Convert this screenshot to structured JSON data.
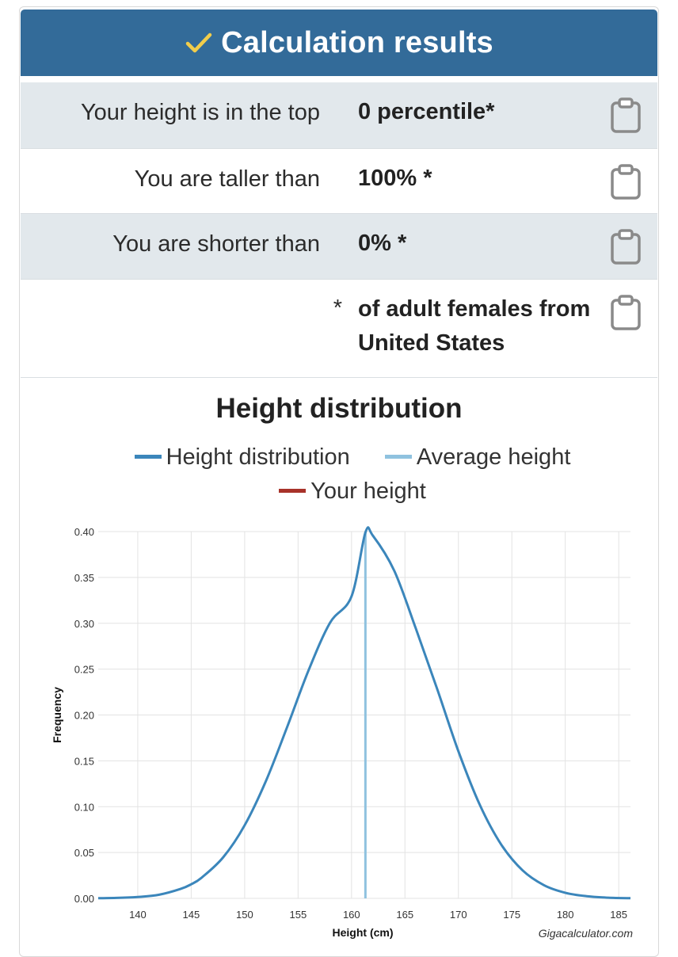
{
  "header": {
    "icon": "check-icon",
    "icon_color": "#f2cd4b",
    "title": "Calculation results",
    "background": "#336b99"
  },
  "results": [
    {
      "label": "Your height is in the top",
      "value": "0 percentile*",
      "shaded": true
    },
    {
      "label": "You are taller than",
      "value": "100% *",
      "shaded": false
    },
    {
      "label": "You are shorter than",
      "value": "0% *",
      "shaded": true
    },
    {
      "label": "*",
      "value": "of adult females from United States",
      "shaded": false
    }
  ],
  "copy_icon": "clipboard-icon",
  "chart_heading": "Height distribution",
  "legend": [
    {
      "name": "Height distribution",
      "color": "#3b86bb"
    },
    {
      "name": "Average height",
      "color": "#8fc2df"
    },
    {
      "name": "Your height",
      "color": "#a8322a"
    }
  ],
  "credit": "Gigacalculator.com",
  "chart_data": {
    "type": "line",
    "xlabel": "Height (cm)",
    "ylabel": "Frequency",
    "xlim": [
      136.3,
      186.1
    ],
    "ylim": [
      0,
      0.4
    ],
    "x_ticks": [
      140,
      145,
      150,
      155,
      160,
      165,
      170,
      175,
      180,
      185
    ],
    "y_ticks": [
      "0.00",
      "0.05",
      "0.10",
      "0.15",
      "0.20",
      "0.25",
      "0.30",
      "0.35",
      "0.40"
    ],
    "grid": true,
    "series": [
      {
        "name": "Height distribution",
        "x": [
          136.3,
          138,
          140,
          142,
          144,
          145,
          146,
          148,
          150,
          152,
          154,
          156,
          158,
          160,
          161.3,
          162,
          164,
          166,
          168,
          170,
          172,
          174,
          176,
          178,
          180,
          182,
          184,
          186.1
        ],
        "y": [
          0.0002,
          0.0005,
          0.0015,
          0.004,
          0.0103,
          0.0154,
          0.0228,
          0.0449,
          0.0797,
          0.1283,
          0.1875,
          0.2492,
          0.3007,
          0.3293,
          0.399,
          0.3955,
          0.3572,
          0.2948,
          0.2287,
          0.1605,
          0.1021,
          0.0588,
          0.0306,
          0.0144,
          0.0061,
          0.0024,
          0.0008,
          0.0002
        ]
      }
    ],
    "average_height": 161.3
  }
}
